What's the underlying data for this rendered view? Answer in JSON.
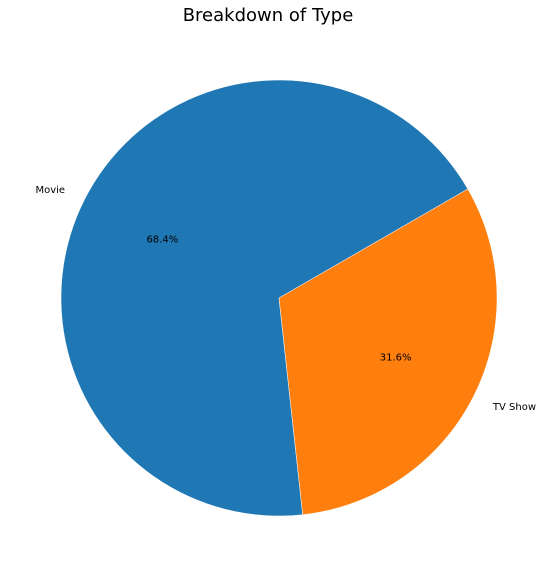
{
  "chart_data": {
    "type": "pie",
    "title": "Breakdown of Type",
    "slices": [
      {
        "label": "Movie",
        "value": 68.4,
        "pct_label": "68.4%",
        "color": "#1f77b4"
      },
      {
        "label": "TV Show",
        "value": 31.6,
        "pct_label": "31.6%",
        "color": "#ff7f0e"
      }
    ],
    "start_angle_deg": 30,
    "direction": "counterclockwise"
  }
}
